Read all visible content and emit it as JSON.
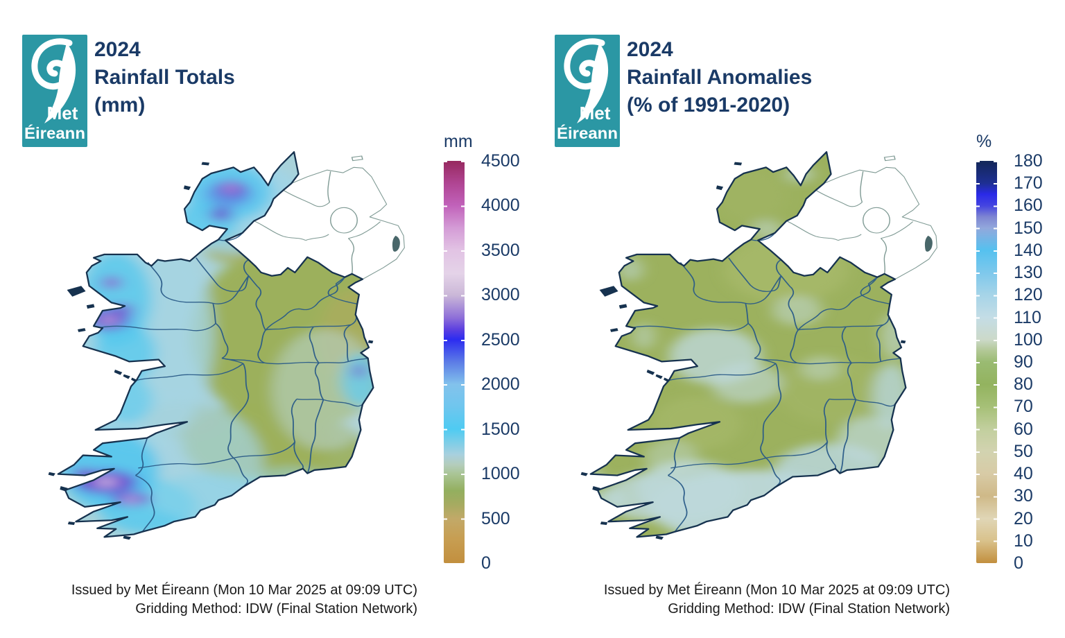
{
  "brand": {
    "teal": "#2b97a4",
    "navy": "#1a3a66",
    "logo_line1": "Met",
    "logo_line2": "Éireann"
  },
  "panels": [
    {
      "id": "rainfall-totals",
      "title_lines": [
        "2024",
        "Rainfall Totals",
        "(mm)"
      ],
      "colorbar": {
        "unit": "mm",
        "tick_labels": [
          "4500",
          "4000",
          "3500",
          "3000",
          "2500",
          "2000",
          "1500",
          "1000",
          "500",
          "0"
        ],
        "value_range": [
          0,
          4500
        ],
        "gradient_stops": [
          "#c28f3e 0%",
          "#c79e52 6%",
          "#c2a968 11%",
          "#a3ab60 15%",
          "#93af5f 18%",
          "#a9c493 22%",
          "#b4cdbc 24.5%",
          "#a8d0de 27%",
          "#4fcbf2 33.3%",
          "#70c6ee 39%",
          "#82c2ec 44.4%",
          "#5c7ce6 50%",
          "#2c2cf0 55.6%",
          "#5b3fe0 58%",
          "#8e6fd8 61%",
          "#cbb8d8 66.7%",
          "#e4d3e8 72%",
          "#e2c3e4 77.8%",
          "#d49cd6 83.3%",
          "#c162ba 88.9%",
          "#b04593 94.4%",
          "#97295f 100%"
        ]
      },
      "map_palette": {
        "low_tan": "#c28f3e",
        "olive_green": "#9cb05b",
        "pale_blue": "#a9d2da",
        "cyan": "#58c8ee",
        "blue": "#2c2cf0",
        "purple": "#6a42cc",
        "lavender_core": "#d2b8e2",
        "coastline": "#16324f",
        "county_border": "#2a5b88",
        "no_data_outline": "#7f9a94"
      },
      "caption_lines": [
        "Issued by Met Éireann (Mon 10 Mar 2025 at 09:09 UTC)",
        "Gridding Method: IDW (Final Station Network)"
      ]
    },
    {
      "id": "rainfall-anomalies",
      "title_lines": [
        "2024",
        "Rainfall Anomalies",
        "(% of 1991-2020)"
      ],
      "colorbar": {
        "unit": "%",
        "tick_labels": [
          "180",
          "170",
          "160",
          "150",
          "140",
          "130",
          "120",
          "110",
          "100",
          "90",
          "80",
          "70",
          "60",
          "50",
          "40",
          "30",
          "20",
          "10",
          "0"
        ],
        "value_range": [
          0,
          180
        ],
        "gradient_stops": [
          "#c28f3e 0%",
          "#d9c28c 5.6%",
          "#e0d6b6 11.1%",
          "#cfb988 16.7%",
          "#d8cba6 22.2%",
          "#d2d3b0 27.8%",
          "#c2cf9e 33.3%",
          "#a6c077 38.9%",
          "#93b35f 44.4%",
          "#9abb72 50%",
          "#b2c896 52.8%",
          "#ccd9c9 55.6%",
          "#c4dde6 61.1%",
          "#a6d4e8 66.7%",
          "#7ec8ec 72.2%",
          "#55c1ef 77.8%",
          "#92a8dc 83.3%",
          "#7e85d2 86.1%",
          "#4444e0 88.9%",
          "#2a2ae8 91.7%",
          "#1e2f94 94.4%",
          "#132758 100%"
        ]
      },
      "map_palette": {
        "olive_green": "#9cb15e",
        "pale_blue": "#bdd8da",
        "coastline": "#16324f",
        "county_border": "#2a5b88",
        "no_data_outline": "#7f9a94"
      },
      "caption_lines": [
        "Issued by Met Éireann (Mon 10 Mar 2025 at 09:09 UTC)",
        "Gridding Method: IDW (Final Station Network)"
      ]
    }
  ]
}
